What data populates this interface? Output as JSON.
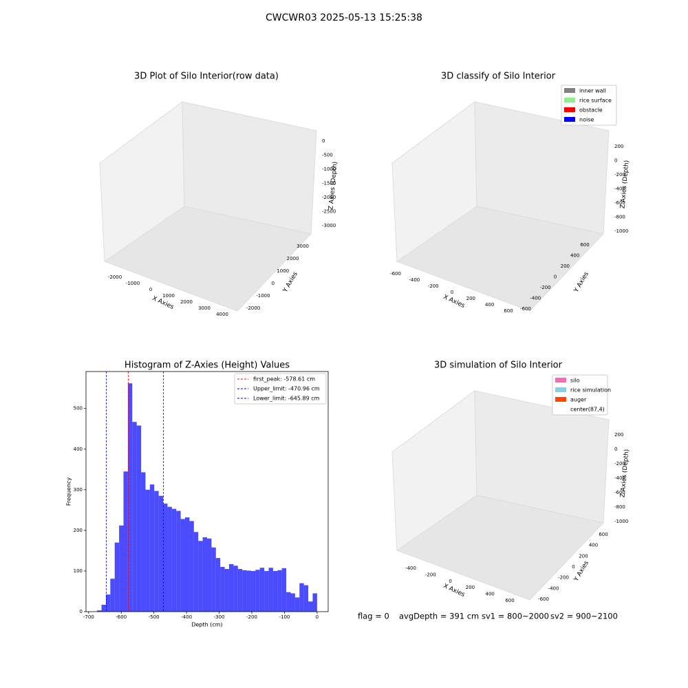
{
  "title": "CWCWR03 2025-05-13 15:25:38",
  "chart_data": [
    {
      "type": "scatter3d",
      "title": "3D Plot of Silo Interior(row data)",
      "xlabel": "X Axies",
      "ylabel": "Y Axies",
      "zlabel": "Z Axies (Depth)",
      "xticks": [
        -2000,
        -1000,
        0,
        1000,
        2000,
        3000,
        4000
      ],
      "yticks": [
        -2000,
        -1000,
        0,
        1000,
        2000,
        3000
      ],
      "zticks": [
        0,
        -500,
        -1000,
        -1500,
        -2000,
        -2500,
        -3000
      ]
    },
    {
      "type": "scatter3d",
      "title": "3D classify of Silo Interior",
      "xlabel": "X Axies",
      "ylabel": "Y Axies",
      "zlabel": "Z Axies (Depth)",
      "xticks": [
        -600,
        -400,
        -200,
        0,
        200,
        400,
        600
      ],
      "yticks": [
        -600,
        -400,
        -200,
        0,
        200,
        400,
        600
      ],
      "zticks": [
        200,
        0,
        -200,
        -400,
        -600,
        -800,
        -1000
      ],
      "series": [
        {
          "name": "inner wall",
          "color": "#808080"
        },
        {
          "name": "rice surface",
          "color": "#90ee90"
        },
        {
          "name": "obstacle",
          "color": "#ff0000"
        },
        {
          "name": "noise",
          "color": "#0000ff"
        }
      ]
    },
    {
      "type": "histogram",
      "title": "Histogram of Z-Axies (Height) Values",
      "xlabel": "Depth (cm)",
      "ylabel": "Frequency",
      "color": "#0000ff",
      "bins": [
        -674,
        -660.52,
        -647.04,
        -633.56,
        -620.08,
        -606.6,
        -593.12,
        -579.64,
        -566.16,
        -552.68,
        -539.2,
        -525.72,
        -512.24,
        -498.76,
        -485.28,
        -471.8,
        -458.32,
        -444.84,
        -431.36,
        -417.88,
        -404.4,
        -390.92,
        -377.44,
        -363.96,
        -350.48,
        -337,
        -323.52,
        -310.04,
        -296.56,
        -283.08,
        -269.6,
        -256.12,
        -242.64,
        -229.16,
        -215.68,
        -202.2,
        -188.72,
        -175.24,
        -161.76,
        -148.28,
        -134.8,
        -121.32,
        -107.84,
        -94.36,
        -80.88,
        -67.4,
        -53.92,
        -40.44,
        -26.96,
        -13.48,
        0
      ],
      "values": [
        3,
        17,
        42,
        81,
        170,
        212,
        345,
        562,
        467,
        458,
        343,
        300,
        313,
        297,
        285,
        266,
        258,
        253,
        248,
        228,
        232,
        223,
        196,
        174,
        183,
        180,
        158,
        132,
        110,
        105,
        117,
        113,
        105,
        102,
        101,
        100,
        103,
        108,
        100,
        108,
        100,
        102,
        107,
        48,
        45,
        35,
        70,
        65,
        25,
        45
      ],
      "vlines": [
        {
          "value": -578.61,
          "label": "first_peak: -578.61 cm",
          "color": "#ff0000"
        },
        {
          "value": -470.96,
          "label": "Upper_limit: -470.96 cm",
          "color": "#0000ff"
        },
        {
          "value": -645.89,
          "label": "Lower_limit: -645.89 cm",
          "color": "#0000ff"
        }
      ],
      "xlim": [
        -708,
        34
      ],
      "ylim": [
        0,
        591
      ],
      "xticks": [
        -700,
        -600,
        -500,
        -400,
        -300,
        -200,
        -100,
        0
      ],
      "yticks": [
        0,
        100,
        200,
        300,
        400,
        500
      ]
    },
    {
      "type": "surface3d",
      "title": "3D simulation of Silo Interior",
      "xlabel": "X Axies",
      "ylabel": "Y Axies",
      "zlabel": "Z Axies (Depth)",
      "xticks": [
        -400,
        -200,
        0,
        200,
        400,
        600
      ],
      "yticks": [
        -600,
        -400,
        -200,
        0,
        200,
        400,
        600
      ],
      "zticks": [
        200,
        0,
        -200,
        -400,
        -600,
        -800,
        -1000
      ],
      "series": [
        {
          "name": "silo",
          "color": "#ff69b4"
        },
        {
          "name": "rice simulation",
          "color": "#87ceeb"
        },
        {
          "name": "auger",
          "color": "#ff4500"
        },
        {
          "name": "center(87,4)",
          "color": "#ffffff"
        }
      ]
    }
  ],
  "footer": [
    "flag = 0",
    "avgDepth = 391 cm",
    "sv1 = 800~2000",
    "sv2 = 900~2100"
  ]
}
